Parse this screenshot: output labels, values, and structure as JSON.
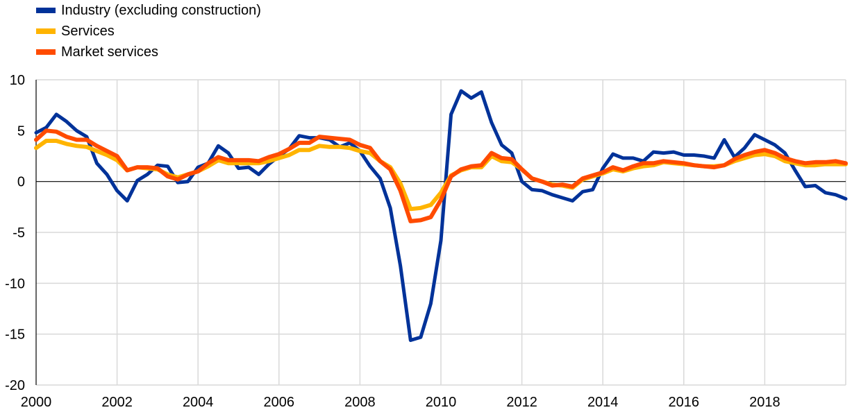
{
  "chart_data": {
    "type": "line",
    "title": "",
    "xlabel": "",
    "ylabel": "",
    "xlim": [
      2000,
      2020
    ],
    "ylim": [
      -20,
      10
    ],
    "x_ticks": [
      "2000",
      "2002",
      "2004",
      "2006",
      "2008",
      "2010",
      "2012",
      "2014",
      "2016",
      "2018"
    ],
    "y_ticks": [
      "10",
      "5",
      "0",
      "-5",
      "-10",
      "-15",
      "-20"
    ],
    "grid": true,
    "legend_position": "top-left",
    "x_quarterly_start": "2000Q1",
    "series": [
      {
        "name": "Industry (excluding construction)",
        "color": "#003299",
        "values": [
          4.8,
          5.3,
          6.6,
          5.9,
          5.0,
          4.4,
          1.8,
          0.7,
          -0.9,
          -1.9,
          0.1,
          0.7,
          1.6,
          1.5,
          -0.1,
          0.0,
          1.4,
          1.8,
          3.5,
          2.8,
          1.3,
          1.4,
          0.7,
          1.7,
          2.5,
          3.2,
          4.5,
          4.3,
          4.3,
          4.1,
          3.4,
          3.8,
          3.0,
          1.5,
          0.3,
          -2.6,
          -8.3,
          -15.6,
          -15.3,
          -12.0,
          -5.8,
          6.6,
          8.9,
          8.2,
          8.8,
          5.8,
          3.6,
          2.8,
          0.0,
          -0.8,
          -0.9,
          -1.3,
          -1.6,
          -1.9,
          -1.0,
          -0.8,
          1.3,
          2.7,
          2.3,
          2.3,
          2.0,
          2.9,
          2.8,
          2.9,
          2.6,
          2.6,
          2.5,
          2.3,
          4.1,
          2.4,
          3.3,
          4.6,
          4.1,
          3.6,
          2.8,
          1.1,
          -0.5,
          -0.4,
          -1.1,
          -1.3,
          -1.7
        ]
      },
      {
        "name": "Services",
        "color": "#ffb400",
        "values": [
          3.3,
          4.0,
          4.0,
          3.7,
          3.5,
          3.4,
          3.0,
          2.6,
          2.1,
          1.1,
          1.4,
          1.3,
          1.2,
          0.7,
          0.4,
          0.7,
          1.0,
          1.5,
          2.1,
          1.8,
          1.8,
          1.8,
          1.8,
          2.0,
          2.3,
          2.6,
          3.1,
          3.1,
          3.5,
          3.4,
          3.4,
          3.3,
          3.0,
          2.8,
          2.0,
          1.4,
          -0.2,
          -2.7,
          -2.6,
          -2.3,
          -1.1,
          0.6,
          1.1,
          1.4,
          1.4,
          2.5,
          2.0,
          1.9,
          1.2,
          0.3,
          0.0,
          -0.3,
          -0.4,
          -0.6,
          0.2,
          0.5,
          0.8,
          1.2,
          1.0,
          1.3,
          1.5,
          1.6,
          1.9,
          1.8,
          1.7,
          1.6,
          1.5,
          1.5,
          1.6,
          2.0,
          2.3,
          2.6,
          2.7,
          2.5,
          2.0,
          1.8,
          1.6,
          1.6,
          1.7,
          1.7,
          1.7
        ]
      },
      {
        "name": "Market services",
        "color": "#ff4b00",
        "values": [
          4.1,
          5.0,
          4.9,
          4.4,
          4.1,
          4.1,
          3.5,
          3.0,
          2.5,
          1.1,
          1.4,
          1.4,
          1.3,
          0.5,
          0.2,
          0.7,
          1.0,
          1.8,
          2.4,
          2.1,
          2.1,
          2.1,
          2.0,
          2.4,
          2.7,
          3.2,
          3.8,
          3.8,
          4.4,
          4.3,
          4.2,
          4.1,
          3.6,
          3.3,
          2.0,
          1.2,
          -0.9,
          -3.9,
          -3.8,
          -3.5,
          -1.8,
          0.5,
          1.2,
          1.5,
          1.6,
          2.8,
          2.3,
          2.2,
          1.2,
          0.3,
          0.0,
          -0.4,
          -0.3,
          -0.5,
          0.3,
          0.6,
          0.9,
          1.4,
          1.1,
          1.5,
          1.8,
          1.8,
          2.0,
          1.9,
          1.8,
          1.6,
          1.5,
          1.4,
          1.6,
          2.2,
          2.6,
          2.9,
          3.1,
          2.8,
          2.3,
          2.0,
          1.8,
          1.9,
          1.9,
          2.0,
          1.8
        ]
      }
    ]
  }
}
